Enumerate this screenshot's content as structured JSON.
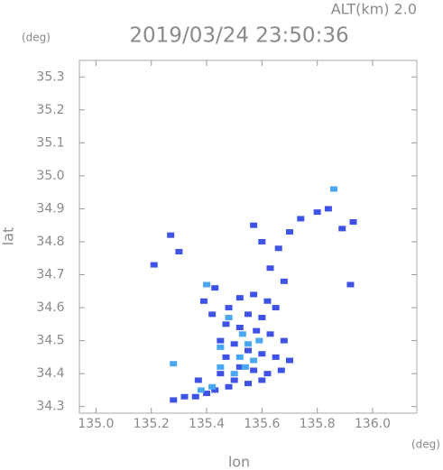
{
  "chart_data": {
    "type": "scatter",
    "title": "2019/03/24 23:50:36",
    "subtitle": "ALT(km)  2.0",
    "y_unit": "(deg)",
    "x_unit": "(deg)",
    "x_label": "lon",
    "y_label": "lat",
    "xlim": [
      134.94,
      136.16
    ],
    "ylim": [
      34.28,
      35.35
    ],
    "xticks": [
      {
        "value": 135.0,
        "label": "135.0"
      },
      135.2,
      135.4,
      135.6,
      135.8,
      {
        "value": 136.0,
        "label": "136.0"
      }
    ],
    "yticks": [
      34.3,
      34.4,
      34.5,
      34.6,
      34.7,
      34.8,
      34.9,
      {
        "value": 35.0,
        "label": "35.0"
      },
      35.1,
      35.2,
      35.3
    ],
    "series": [
      {
        "color": "#3f52e6",
        "x": [
          135.57,
          135.52,
          135.62,
          135.48,
          135.55,
          135.6,
          135.65,
          135.47,
          135.52,
          135.58,
          135.63,
          135.68,
          135.45,
          135.5,
          135.55,
          135.6,
          135.65,
          135.7,
          135.47,
          135.52,
          135.57,
          135.62,
          135.67,
          135.45,
          135.5,
          135.55,
          135.6,
          135.48,
          135.43,
          135.4,
          135.36,
          135.32,
          135.28,
          135.43,
          135.42,
          135.39,
          135.3,
          135.27,
          135.21,
          135.57,
          135.6,
          135.66,
          135.7,
          135.74,
          135.8,
          135.84,
          135.93,
          135.89,
          135.92,
          135.68,
          135.63,
          135.37
        ],
        "y": [
          34.64,
          34.63,
          34.62,
          34.6,
          34.58,
          34.57,
          34.6,
          34.55,
          34.54,
          34.53,
          34.52,
          34.5,
          34.5,
          34.49,
          34.47,
          34.46,
          34.45,
          34.44,
          34.45,
          34.42,
          34.41,
          34.4,
          34.41,
          34.4,
          34.38,
          34.37,
          34.38,
          34.36,
          34.35,
          34.34,
          34.33,
          34.33,
          34.32,
          34.66,
          34.58,
          34.62,
          34.77,
          34.82,
          34.73,
          34.85,
          34.8,
          34.78,
          34.83,
          34.87,
          34.89,
          34.9,
          34.86,
          34.84,
          34.67,
          34.68,
          34.72,
          34.38
        ]
      },
      {
        "color": "#4aa8f2",
        "x": [
          135.53,
          135.55,
          135.52,
          135.57,
          135.5,
          135.54,
          135.45,
          135.38,
          135.42,
          135.48,
          135.86,
          135.4,
          135.28,
          135.45,
          135.59
        ],
        "y": [
          34.52,
          34.49,
          34.45,
          34.44,
          34.4,
          34.42,
          34.42,
          34.35,
          34.36,
          34.57,
          34.96,
          34.67,
          34.43,
          34.48,
          34.5
        ]
      }
    ]
  }
}
